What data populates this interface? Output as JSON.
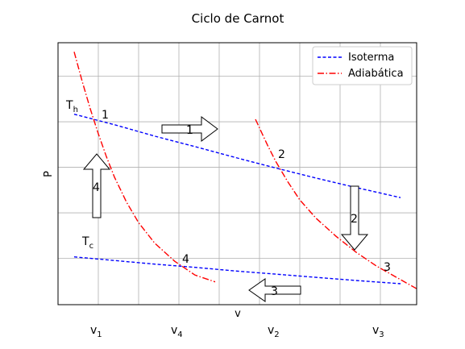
{
  "chart_data": {
    "type": "line",
    "title": "Ciclo de Carnot",
    "xlabel": "v",
    "ylabel": "P",
    "xlim": [
      0.6,
      9.5
    ],
    "ylim": [
      0.4,
      6.15
    ],
    "grid": true,
    "legend_position": "top-right",
    "series": [
      {
        "name": "Isoterma",
        "style": "dashed",
        "color": "#0000ff",
        "segments": [
          {
            "x": [
              1.0,
              2.0,
              3.0,
              4.0,
              5.0,
              6.0,
              7.0,
              8.0,
              9.1
            ],
            "y": [
              4.58,
              4.35,
              4.1,
              3.87,
              3.63,
              3.4,
              3.18,
              2.97,
              2.75
            ]
          },
          {
            "x": [
              1.0,
              2.0,
              3.0,
              4.0,
              5.0,
              6.0,
              7.0,
              8.0,
              9.1
            ],
            "y": [
              1.45,
              1.37,
              1.29,
              1.22,
              1.14,
              1.07,
              1.0,
              0.93,
              0.86
            ]
          }
        ]
      },
      {
        "name": "Adiabática",
        "style": "dashdot",
        "color": "#ff0000",
        "segments": [
          {
            "x": [
              1.0,
              1.2,
              1.4,
              1.6,
              1.8,
              2.0,
              2.3,
              2.6,
              3.0,
              3.5,
              4.0,
              4.5
            ],
            "y": [
              5.95,
              5.3,
              4.7,
              4.15,
              3.65,
              3.2,
              2.65,
              2.2,
              1.75,
              1.35,
              1.05,
              0.9
            ]
          },
          {
            "x": [
              5.5,
              5.8,
              6.0,
              6.3,
              6.6,
              7.0,
              7.5,
              8.0,
              8.5,
              9.0,
              9.5
            ],
            "y": [
              4.47,
              3.9,
              3.55,
              3.1,
              2.7,
              2.3,
              1.9,
              1.55,
              1.25,
              1.0,
              0.75
            ]
          }
        ]
      }
    ],
    "annotations": {
      "th": {
        "main": "T",
        "sub": "h"
      },
      "tc": {
        "main": "T",
        "sub": "c"
      },
      "points": [
        "1",
        "2",
        "3",
        "4"
      ],
      "arrows": [
        "1",
        "2",
        "3",
        "4"
      ],
      "v_labels": [
        {
          "main": "v",
          "sub": "1"
        },
        {
          "main": "v",
          "sub": "4"
        },
        {
          "main": "v",
          "sub": "2"
        },
        {
          "main": "v",
          "sub": "3"
        }
      ]
    }
  }
}
